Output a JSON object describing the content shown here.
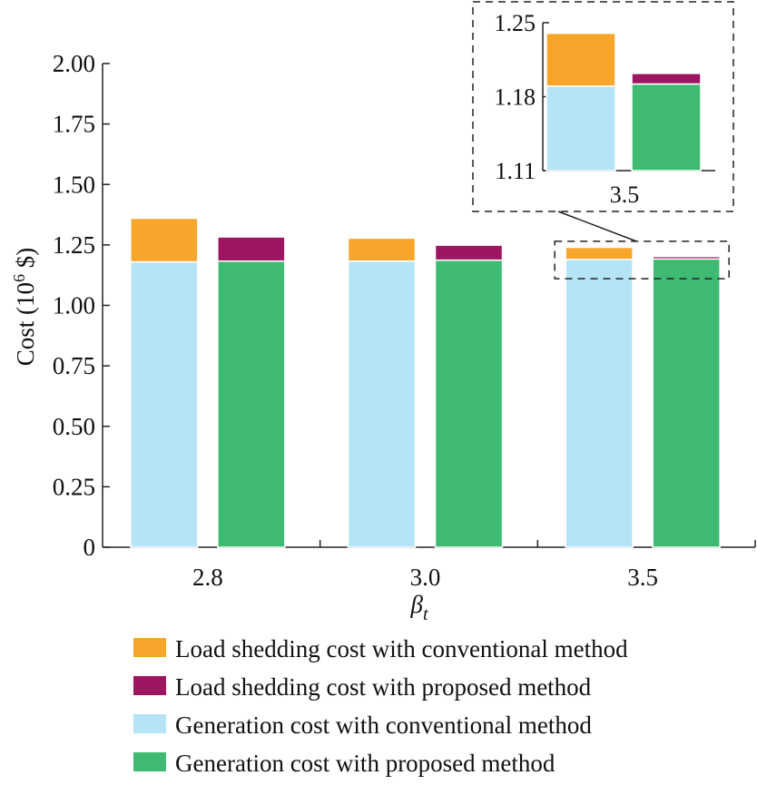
{
  "chart_data": {
    "type": "bar",
    "stacked": true,
    "xlabel": "βt",
    "xlabel_symbol": "β",
    "xlabel_sub": "t",
    "ylabel": "Cost (10⁶ $)",
    "ylabel_main": "Cost (10",
    "ylabel_sup": "6",
    "ylabel_end": " $)",
    "ylim": [
      0,
      2.0
    ],
    "yticks": [
      "0",
      "0.25",
      "0.50",
      "0.75",
      "1.00",
      "1.25",
      "1.50",
      "1.75",
      "2.00"
    ],
    "ytick_values": [
      0,
      0.25,
      0.5,
      0.75,
      1.0,
      1.25,
      1.5,
      1.75,
      2.0
    ],
    "categories": [
      "2.8",
      "3.0",
      "3.5"
    ],
    "grid": false,
    "legend_position": "bottom",
    "bars": [
      {
        "method": "conventional",
        "series": [
          {
            "name": "Generation cost with conventional method",
            "values": [
              1.18,
              1.183,
              1.19
            ]
          },
          {
            "name": "Load shedding cost with conventional method",
            "values": [
              0.18,
              0.095,
              0.05
            ]
          }
        ]
      },
      {
        "method": "proposed",
        "series": [
          {
            "name": "Generation cost with proposed method",
            "values": [
              1.183,
              1.187,
              1.192
            ]
          },
          {
            "name": "Load shedding cost with proposed method",
            "values": [
              0.1,
              0.062,
              0.01
            ]
          }
        ]
      }
    ],
    "legend": [
      {
        "label": "Load shedding cost with conventional method",
        "color": "#F7A52B"
      },
      {
        "label": "Load shedding cost with proposed method",
        "color": "#9E1562"
      },
      {
        "label": "Generation cost with conventional method",
        "color": "#B5E4F7"
      },
      {
        "label": "Generation cost with proposed method",
        "color": "#3FBA72"
      }
    ],
    "colors": {
      "load_conventional": "#F7A52B",
      "load_proposed": "#9E1562",
      "gen_conventional": "#B5E4F7",
      "gen_proposed": "#3FBA72"
    },
    "inset": {
      "category": "3.5",
      "ylim": [
        1.11,
        1.25
      ],
      "yticks": [
        "1.11",
        "1.18",
        "1.25"
      ],
      "ytick_values": [
        1.11,
        1.18,
        1.25
      ],
      "conventional": {
        "generation": 1.19,
        "total": 1.24
      },
      "proposed": {
        "generation": 1.192,
        "total": 1.202
      }
    }
  }
}
